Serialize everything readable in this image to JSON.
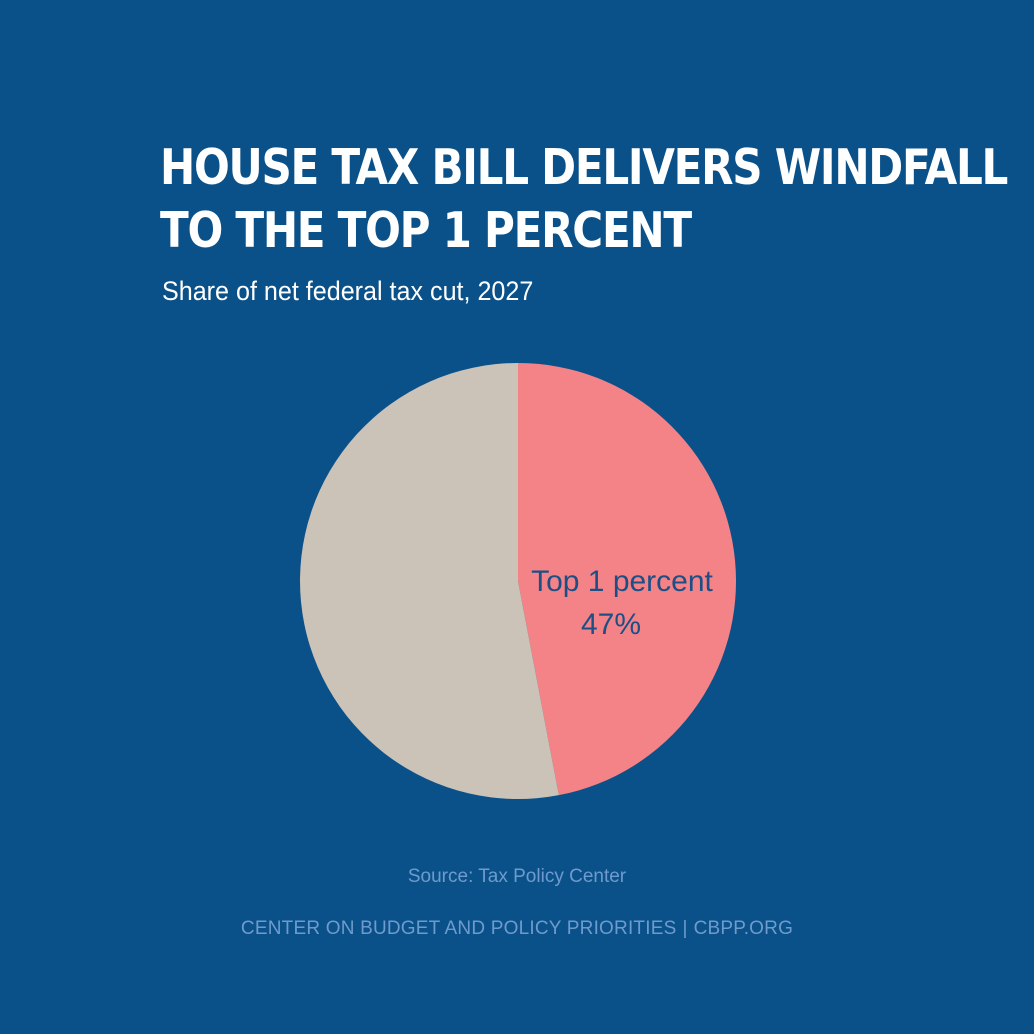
{
  "title_lines": [
    "House Tax Bill Delivers Windfall",
    "to the Top 1 Percent"
  ],
  "subtitle": "Share of net federal tax cut, 2027",
  "source": "Source: Tax Policy Center",
  "footer": {
    "org": "CENTER ON BUDGET AND POLICY PRIORITIES",
    "separator": "|",
    "url": "CBPP.ORG"
  },
  "colors": {
    "background": "#0b5189",
    "top1": "#f48387",
    "rest": "#cbc3b8",
    "label": "#1d4f87",
    "footer_text": "#6e9bcd"
  },
  "chart_data": {
    "type": "pie",
    "slices": [
      {
        "label": "Top 1 percent",
        "value": 47,
        "value_label": "47%",
        "color": "#f48387"
      },
      {
        "label": "",
        "value": 53,
        "value_label": "",
        "color": "#cbc3b8"
      }
    ],
    "start": "12 o'clock, clockwise"
  }
}
